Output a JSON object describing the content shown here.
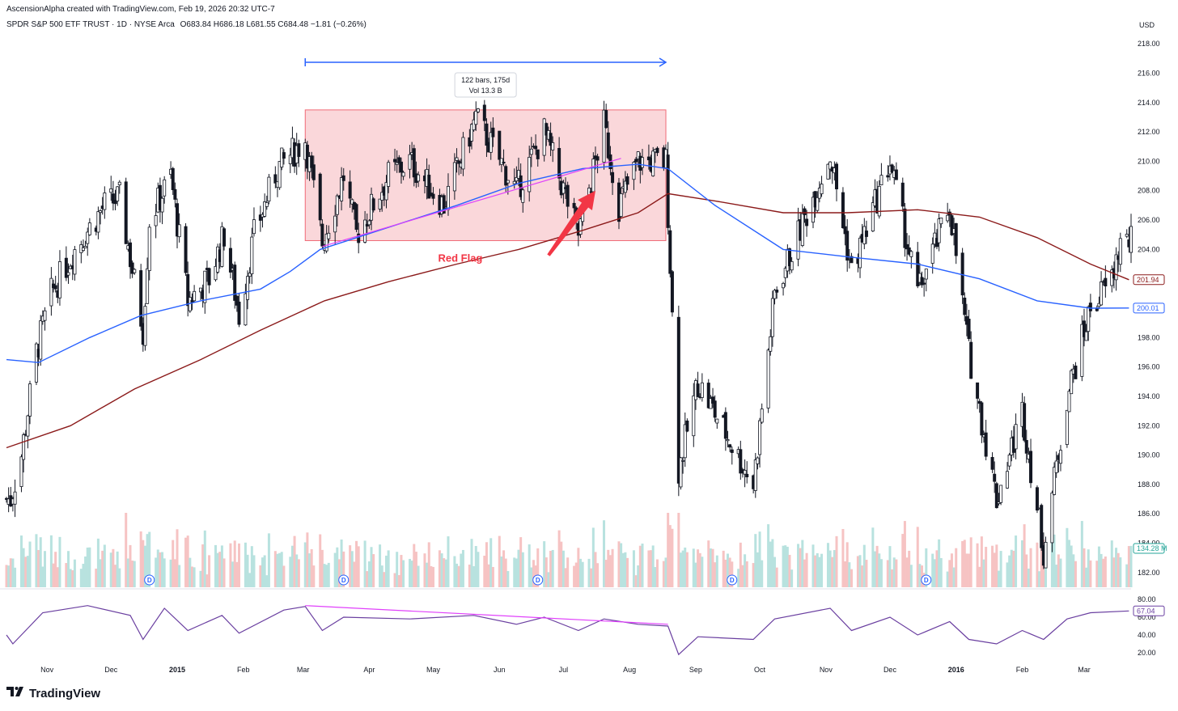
{
  "header": {
    "caption": "AscensionAlpha created with TradingView.com, Feb 19, 2026 20:32 UTC-7",
    "symbol": "SPDR S&P 500 ETF TRUST · 1D · NYSE Arca",
    "ohlc": "O683.84  H686.18  L681.55  C684.48  −1.81 (−0.26%)",
    "currency": "USD"
  },
  "brand": {
    "name": "TradingView",
    "icon": "tradingview-logo-icon"
  },
  "colors": {
    "up": "#131722",
    "down": "#131722",
    "ma_blue": "#2962ff",
    "ma_red": "#8b1a1a",
    "rsi": "#6a3fa0",
    "trend": "#e040fb",
    "box_fill": "#f8c9cd",
    "box_stroke": "#f06a76",
    "arrow": "#f23645",
    "range": "#2962ff",
    "vol_up": "#b8e2df",
    "vol_down": "#f6c3c3"
  },
  "chart_data": {
    "type": "candlestick",
    "ylim": [
      181,
      219
    ],
    "y_ticks": [
      218,
      216,
      214,
      212,
      210,
      208,
      206,
      204,
      202,
      200,
      198,
      196,
      194,
      192,
      190,
      188,
      186,
      184,
      182
    ],
    "x_ticks": [
      "Nov",
      "Dec",
      "2015",
      "Feb",
      "Mar",
      "Apr",
      "May",
      "Jun",
      "Jul",
      "Aug",
      "Sep",
      "Oct",
      "Nov",
      "Dec",
      "2016",
      "Feb",
      "Mar"
    ],
    "price_path": [
      [
        "2014-10-15",
        187
      ],
      [
        "2014-10-20",
        190
      ],
      [
        "2014-10-27",
        197
      ],
      [
        "2014-11-03",
        201
      ],
      [
        "2014-11-14",
        204
      ],
      [
        "2014-11-28",
        207
      ],
      [
        "2014-12-05",
        207.5
      ],
      [
        "2014-12-16",
        198.5
      ],
      [
        "2014-12-19",
        206
      ],
      [
        "2014-12-29",
        209
      ],
      [
        "2015-01-06",
        200.5
      ],
      [
        "2015-01-16",
        202
      ],
      [
        "2015-01-23",
        205
      ],
      [
        "2015-01-30",
        199.5
      ],
      [
        "2015-02-06",
        205
      ],
      [
        "2015-02-17",
        209.5
      ],
      [
        "2015-03-02",
        211.5
      ],
      [
        "2015-03-10",
        204.5
      ],
      [
        "2015-03-20",
        209
      ],
      [
        "2015-03-26",
        205
      ],
      [
        "2015-04-10",
        209
      ],
      [
        "2015-04-20",
        210
      ],
      [
        "2015-05-06",
        207
      ],
      [
        "2015-05-21",
        213
      ],
      [
        "2015-06-09",
        208
      ],
      [
        "2015-06-22",
        212
      ],
      [
        "2015-07-08",
        205
      ],
      [
        "2015-07-20",
        212.5
      ],
      [
        "2015-07-27",
        207
      ],
      [
        "2015-08-05",
        210
      ],
      [
        "2015-08-18",
        210
      ],
      [
        "2015-08-24",
        189
      ],
      [
        "2015-09-02",
        195
      ],
      [
        "2015-09-28",
        188
      ],
      [
        "2015-10-08",
        201
      ],
      [
        "2015-11-03",
        210.5
      ],
      [
        "2015-11-13",
        202.5
      ],
      [
        "2015-12-01",
        210
      ],
      [
        "2015-12-14",
        201
      ],
      [
        "2015-12-29",
        207
      ],
      [
        "2016-01-07",
        197
      ],
      [
        "2016-01-20",
        187
      ],
      [
        "2016-02-01",
        193
      ],
      [
        "2016-02-11",
        183.5
      ],
      [
        "2016-02-22",
        194
      ],
      [
        "2016-03-04",
        200
      ],
      [
        "2016-03-14",
        202
      ],
      [
        "2016-03-18",
        204.5
      ]
    ],
    "ma_blue_label": "200.01",
    "ma_red_label": "201.94",
    "ma_blue_path": [
      [
        "2014-10-13",
        196.5
      ],
      [
        "2014-10-28",
        196.3
      ],
      [
        "2014-11-21",
        198
      ],
      [
        "2014-12-15",
        199.5
      ],
      [
        "2015-01-12",
        200.5
      ],
      [
        "2015-02-09",
        201.3
      ],
      [
        "2015-02-23",
        202.5
      ],
      [
        "2015-03-09",
        204
      ],
      [
        "2015-04-10",
        205.5
      ],
      [
        "2015-05-12",
        207
      ],
      [
        "2015-06-10",
        208.5
      ],
      [
        "2015-07-10",
        209.5
      ],
      [
        "2015-08-05",
        209.8
      ],
      [
        "2015-08-19",
        209.5
      ],
      [
        "2015-09-10",
        207
      ],
      [
        "2015-10-12",
        204
      ],
      [
        "2015-11-11",
        203.5
      ],
      [
        "2015-12-14",
        203
      ],
      [
        "2016-01-12",
        202
      ],
      [
        "2016-02-08",
        200.5
      ],
      [
        "2016-03-04",
        200
      ],
      [
        "2016-03-22",
        200.01
      ]
    ],
    "ma_red_path": [
      [
        "2014-10-13",
        190.5
      ],
      [
        "2014-11-12",
        192
      ],
      [
        "2014-12-12",
        194.5
      ],
      [
        "2015-01-12",
        196.5
      ],
      [
        "2015-02-09",
        198.5
      ],
      [
        "2015-03-11",
        200.5
      ],
      [
        "2015-04-10",
        201.8
      ],
      [
        "2015-05-12",
        203
      ],
      [
        "2015-06-10",
        204
      ],
      [
        "2015-07-10",
        205.3
      ],
      [
        "2015-08-05",
        206.5
      ],
      [
        "2015-08-19",
        207.8
      ],
      [
        "2015-09-10",
        207.3
      ],
      [
        "2015-10-12",
        206.5
      ],
      [
        "2015-11-11",
        206.5
      ],
      [
        "2015-12-14",
        206.7
      ],
      [
        "2016-01-12",
        206.2
      ],
      [
        "2016-02-08",
        204.8
      ],
      [
        "2016-03-04",
        203
      ],
      [
        "2016-03-22",
        201.94
      ]
    ],
    "volume": {
      "last_label": "134.28 M",
      "levels": [
        "low",
        "mid",
        "high"
      ]
    },
    "dividend_markers": {
      "label": "D",
      "dates": [
        "2014-12-19",
        "2015-03-20",
        "2015-06-19",
        "2015-09-18",
        "2015-12-18"
      ]
    },
    "rsi": {
      "ylim": [
        10,
        90
      ],
      "ticks": [
        80.0,
        60.0,
        40.0,
        20.0
      ],
      "last_label": "67.04",
      "path": [
        [
          "2014-10-13",
          40
        ],
        [
          "2014-10-16",
          30
        ],
        [
          "2014-10-30",
          65
        ],
        [
          "2014-11-20",
          73
        ],
        [
          "2014-12-10",
          62
        ],
        [
          "2014-12-16",
          35
        ],
        [
          "2014-12-26",
          70
        ],
        [
          "2015-01-06",
          45
        ],
        [
          "2015-01-22",
          62
        ],
        [
          "2015-01-30",
          42
        ],
        [
          "2015-02-20",
          68
        ],
        [
          "2015-03-02",
          72
        ],
        [
          "2015-03-10",
          45
        ],
        [
          "2015-03-20",
          60
        ],
        [
          "2015-04-20",
          58
        ],
        [
          "2015-05-20",
          62
        ],
        [
          "2015-06-09",
          52
        ],
        [
          "2015-06-22",
          60
        ],
        [
          "2015-07-08",
          45
        ],
        [
          "2015-07-20",
          58
        ],
        [
          "2015-08-05",
          52
        ],
        [
          "2015-08-19",
          50
        ],
        [
          "2015-08-24",
          18
        ],
        [
          "2015-09-02",
          38
        ],
        [
          "2015-09-28",
          35
        ],
        [
          "2015-10-08",
          58
        ],
        [
          "2015-11-03",
          70
        ],
        [
          "2015-11-13",
          45
        ],
        [
          "2015-12-01",
          60
        ],
        [
          "2015-12-14",
          40
        ],
        [
          "2015-12-29",
          55
        ],
        [
          "2016-01-07",
          35
        ],
        [
          "2016-01-20",
          30
        ],
        [
          "2016-02-01",
          45
        ],
        [
          "2016-02-11",
          35
        ],
        [
          "2016-02-22",
          58
        ],
        [
          "2016-03-04",
          65
        ],
        [
          "2016-03-22",
          67.04
        ]
      ]
    },
    "annotations": {
      "range_label_1": "122 bars, 175d",
      "range_label_2": "Vol 13.3 B",
      "range_start": "2015-03-02",
      "range_end": "2015-08-18",
      "box_price_top": 213.5,
      "box_price_bottom": 204.6,
      "trend_start": [
        "2015-03-10",
        204.2
      ],
      "trend_end": [
        "2015-07-28",
        210.2
      ],
      "rsi_trend_start": [
        "2015-03-02",
        73
      ],
      "rsi_trend_end": [
        "2015-08-19",
        52
      ],
      "arrow_from": [
        "2015-06-24",
        203.6
      ],
      "arrow_to": [
        "2015-07-16",
        208
      ],
      "flag_text": "Red Flag",
      "flag_at": [
        "2015-06-17",
        203.4
      ]
    }
  }
}
